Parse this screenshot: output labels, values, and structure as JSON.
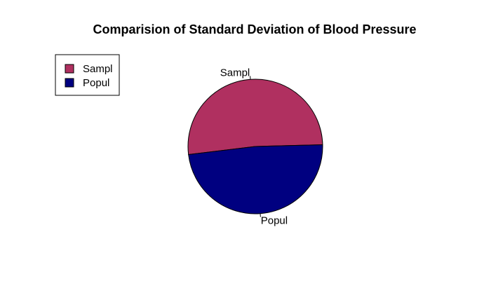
{
  "chart_data": {
    "type": "pie",
    "title": "Comparision of Standard Deviation of Blood Pressure",
    "slices": [
      {
        "label": "Sampl",
        "value": 51.5,
        "color": "#B03060"
      },
      {
        "label": "Popul",
        "value": 48.5,
        "color": "#000080"
      }
    ],
    "legend": {
      "placement": "top-left",
      "entries": [
        "Sampl",
        "Popul"
      ]
    }
  }
}
